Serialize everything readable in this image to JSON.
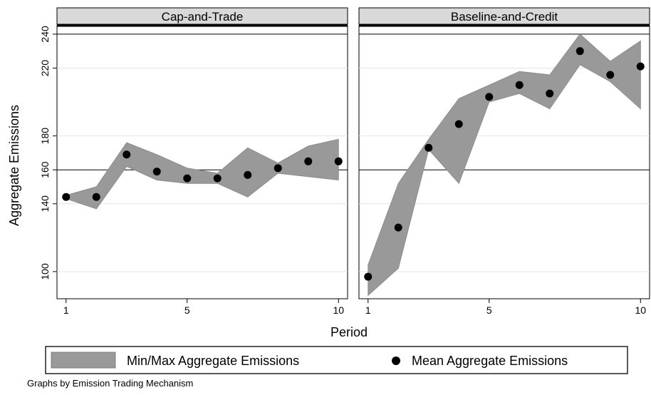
{
  "chart_data": {
    "type": "area",
    "by_label": "Graphs by Emission Trading Mechanism",
    "xlabel": "Period",
    "ylabel": "Aggregate Emissions",
    "xticks": [
      1,
      5,
      10
    ],
    "yticks": [
      100,
      140,
      160,
      180,
      220,
      240
    ],
    "xlim": [
      0.7,
      10.3
    ],
    "ylim": [
      84,
      245
    ],
    "reference_lines": [
      160,
      240
    ],
    "grid": true,
    "legend_position": "bottom",
    "legend": [
      {
        "name": "Min/Max Aggregate Emissions",
        "symbol": "band",
        "color": "#999999"
      },
      {
        "name": "Mean Aggregate Emissions",
        "symbol": "dot",
        "color": "#000000"
      }
    ],
    "panels": [
      {
        "title": "Cap-and-Trade",
        "x": [
          1,
          2,
          3,
          4,
          5,
          6,
          7,
          8,
          9,
          10
        ],
        "min": [
          143,
          137,
          162,
          154,
          152,
          152,
          144,
          158,
          156,
          154
        ],
        "max": [
          145,
          150,
          176,
          169,
          161,
          158,
          173,
          164,
          174,
          178
        ],
        "mean": [
          144,
          144,
          169,
          159,
          155,
          155,
          157,
          161,
          165,
          165
        ]
      },
      {
        "title": "Baseline-and-Credit",
        "x": [
          1,
          2,
          3,
          4,
          5,
          6,
          7,
          8,
          9,
          10
        ],
        "min": [
          86,
          102,
          172,
          152,
          200,
          205,
          196,
          222,
          212,
          196
        ],
        "max": [
          104,
          152,
          178,
          202,
          210,
          218,
          216,
          240,
          224,
          236
        ],
        "mean": [
          97,
          126,
          173,
          187,
          203,
          210,
          205,
          230,
          216,
          221
        ]
      }
    ]
  }
}
